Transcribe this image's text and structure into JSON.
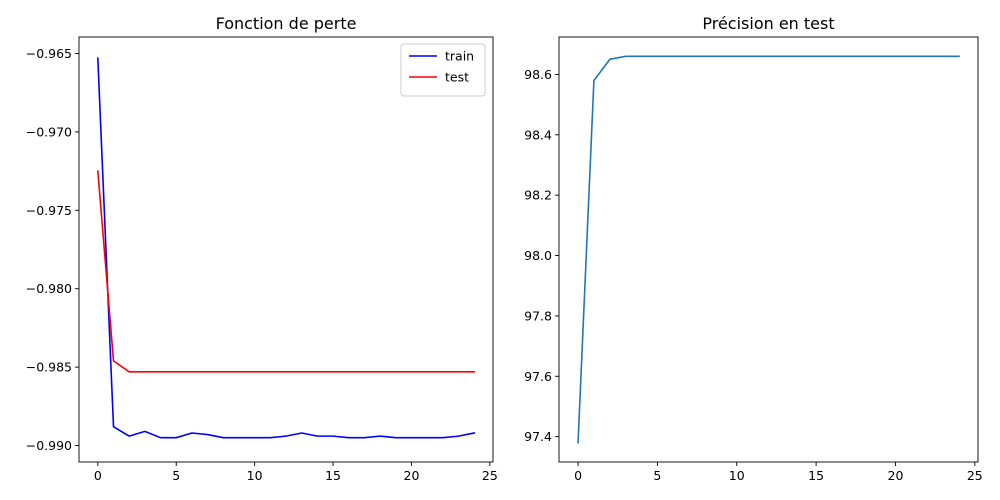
{
  "chart_data": [
    {
      "type": "line",
      "title": "Fonction de perte",
      "xlabel": "",
      "ylabel": "",
      "xlim": [
        -1.2,
        25.2
      ],
      "ylim": [
        -0.99105,
        -0.96395
      ],
      "xticks": [
        0,
        5,
        10,
        15,
        20,
        25
      ],
      "yticks": [
        -0.99,
        -0.985,
        -0.98,
        -0.975,
        -0.97,
        -0.965
      ],
      "ytick_labels": [
        "−0.990",
        "−0.985",
        "−0.980",
        "−0.975",
        "−0.970",
        "−0.965"
      ],
      "grid": false,
      "legend": "top-right",
      "x": [
        0,
        1,
        2,
        3,
        4,
        5,
        6,
        7,
        8,
        9,
        10,
        11,
        12,
        13,
        14,
        15,
        16,
        17,
        18,
        19,
        20,
        21,
        22,
        23,
        24
      ],
      "series": [
        {
          "name": "train",
          "color": "#0000ff",
          "values": [
            -0.9653,
            -0.9888,
            -0.9894,
            -0.9891,
            -0.9895,
            -0.9895,
            -0.9892,
            -0.9893,
            -0.9895,
            -0.9895,
            -0.9895,
            -0.9895,
            -0.9894,
            -0.9892,
            -0.9894,
            -0.9894,
            -0.9895,
            -0.9895,
            -0.9894,
            -0.9895,
            -0.9895,
            -0.9895,
            -0.9895,
            -0.9894,
            -0.9892
          ]
        },
        {
          "name": "test",
          "color": "#ff0000",
          "values": [
            -0.9725,
            -0.9846,
            -0.9853,
            -0.9853,
            -0.9853,
            -0.9853,
            -0.9853,
            -0.9853,
            -0.9853,
            -0.9853,
            -0.9853,
            -0.9853,
            -0.9853,
            -0.9853,
            -0.9853,
            -0.9853,
            -0.9853,
            -0.9853,
            -0.9853,
            -0.9853,
            -0.9853,
            -0.9853,
            -0.9853,
            -0.9853,
            -0.9853
          ]
        }
      ]
    },
    {
      "type": "line",
      "title": "Précision en test",
      "xlabel": "",
      "ylabel": "",
      "xlim": [
        -1.2,
        25.2
      ],
      "ylim": [
        97.316,
        98.724
      ],
      "xticks": [
        0,
        5,
        10,
        15,
        20,
        25
      ],
      "yticks": [
        97.4,
        97.6,
        97.8,
        98.0,
        98.2,
        98.4,
        98.6
      ],
      "ytick_labels": [
        "97.4",
        "97.6",
        "97.8",
        "98.0",
        "98.2",
        "98.4",
        "98.6"
      ],
      "grid": false,
      "x": [
        0,
        1,
        2,
        3,
        4,
        5,
        6,
        7,
        8,
        9,
        10,
        11,
        12,
        13,
        14,
        15,
        16,
        17,
        18,
        19,
        20,
        21,
        22,
        23,
        24
      ],
      "series": [
        {
          "color": "#1f77b4",
          "values": [
            97.38,
            98.58,
            98.65,
            98.66,
            98.66,
            98.66,
            98.66,
            98.66,
            98.66,
            98.66,
            98.66,
            98.66,
            98.66,
            98.66,
            98.66,
            98.66,
            98.66,
            98.66,
            98.66,
            98.66,
            98.66,
            98.66,
            98.66,
            98.66,
            98.66
          ]
        }
      ]
    }
  ]
}
